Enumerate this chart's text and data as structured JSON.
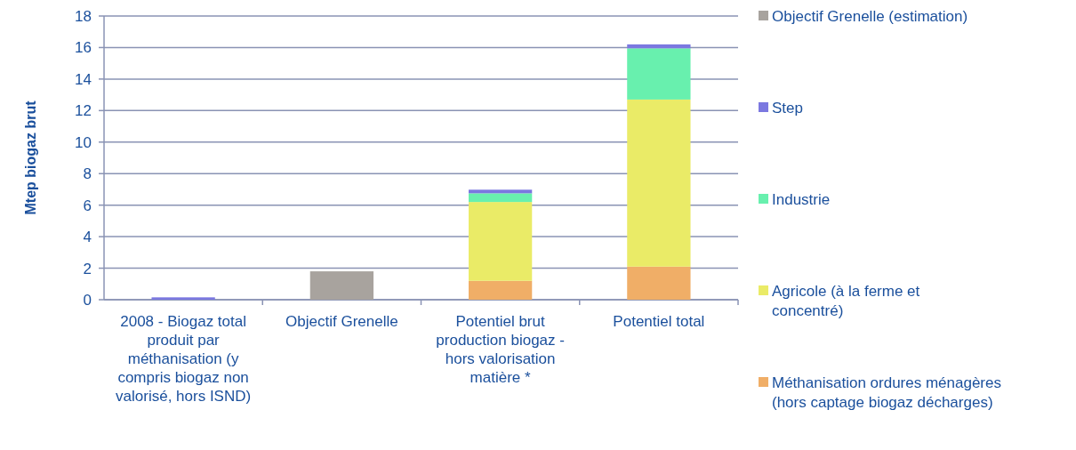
{
  "chart_data": {
    "type": "bar",
    "stacked": true,
    "ylabel": "Mtep biogaz brut",
    "categories": [
      "2008 - Biogaz total produit par méthanisation (y compris biogaz non valorisé, hors ISND)",
      "Objectif Grenelle",
      "Potentiel brut production biogaz - hors valorisation matière *",
      "Potentiel total"
    ],
    "series": [
      {
        "name": "Méthanisation ordures ménagères (hors captage biogaz décharges)",
        "color": "#f0ae67",
        "values": [
          null,
          null,
          1.2,
          2.1
        ]
      },
      {
        "name": "Agricole (à la ferme et concentré)",
        "color": "#eaeb67",
        "values": [
          null,
          null,
          5.0,
          10.6
        ]
      },
      {
        "name": "Industrie",
        "color": "#68f0ae",
        "values": [
          null,
          null,
          0.55,
          3.25
        ]
      },
      {
        "name": "Step",
        "color": "#7b78e0",
        "values": [
          0.15,
          null,
          0.23,
          0.25
        ]
      },
      {
        "name": "Objectif Grenelle (estimation)",
        "color": "#a8a39e",
        "values": [
          null,
          1.8,
          null,
          null
        ]
      }
    ],
    "ylim": [
      0,
      18
    ],
    "yticks": [
      0,
      2,
      4,
      6,
      8,
      10,
      12,
      14,
      16,
      18
    ],
    "grid": "y",
    "legend": "right"
  }
}
